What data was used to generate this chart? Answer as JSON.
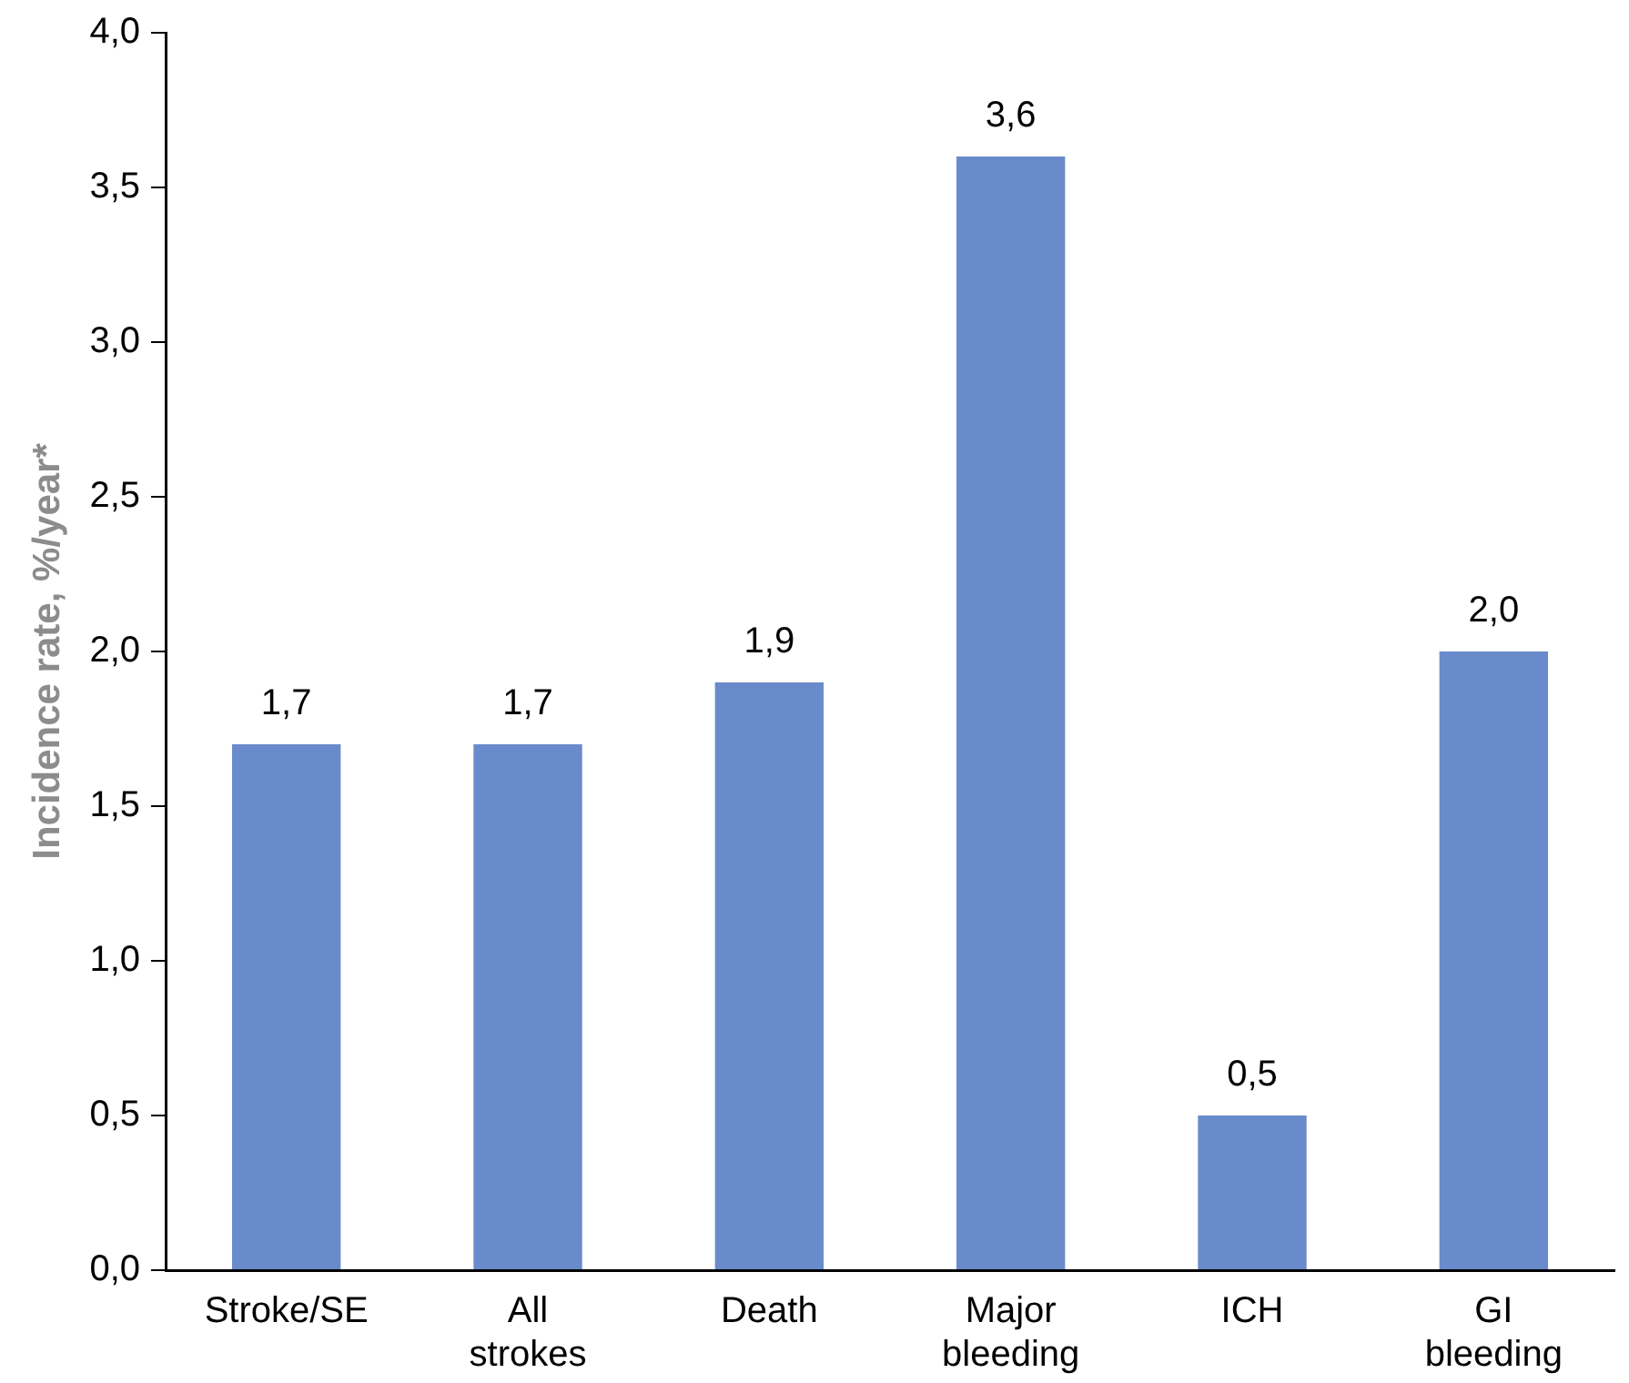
{
  "chart_data": {
    "type": "bar",
    "ylabel": "Incidence rate, %/year*",
    "categories": [
      "Stroke/SE",
      "All strokes",
      "Death",
      "Major bleeding",
      "ICH",
      "GI bleeding"
    ],
    "values": [
      1.7,
      1.7,
      1.9,
      3.6,
      0.5,
      2.0
    ],
    "value_labels": [
      "1,7",
      "1,7",
      "1,9",
      "3,6",
      "0,5",
      "2,0"
    ],
    "color": "#6a8bcb",
    "ylim": [
      0,
      4
    ],
    "yticks": [
      {
        "value": 0,
        "label": "0,0"
      },
      {
        "value": 0.5,
        "label": "0,5"
      },
      {
        "value": 1,
        "label": "1,0"
      },
      {
        "value": 1.5,
        "label": "1,5"
      },
      {
        "value": 2,
        "label": "2,0"
      },
      {
        "value": 2.5,
        "label": "2,5"
      },
      {
        "value": 3,
        "label": "3,0"
      },
      {
        "value": 3.5,
        "label": "3,5"
      },
      {
        "value": 4,
        "label": "4,0"
      }
    ],
    "grid": false,
    "legend": false
  }
}
